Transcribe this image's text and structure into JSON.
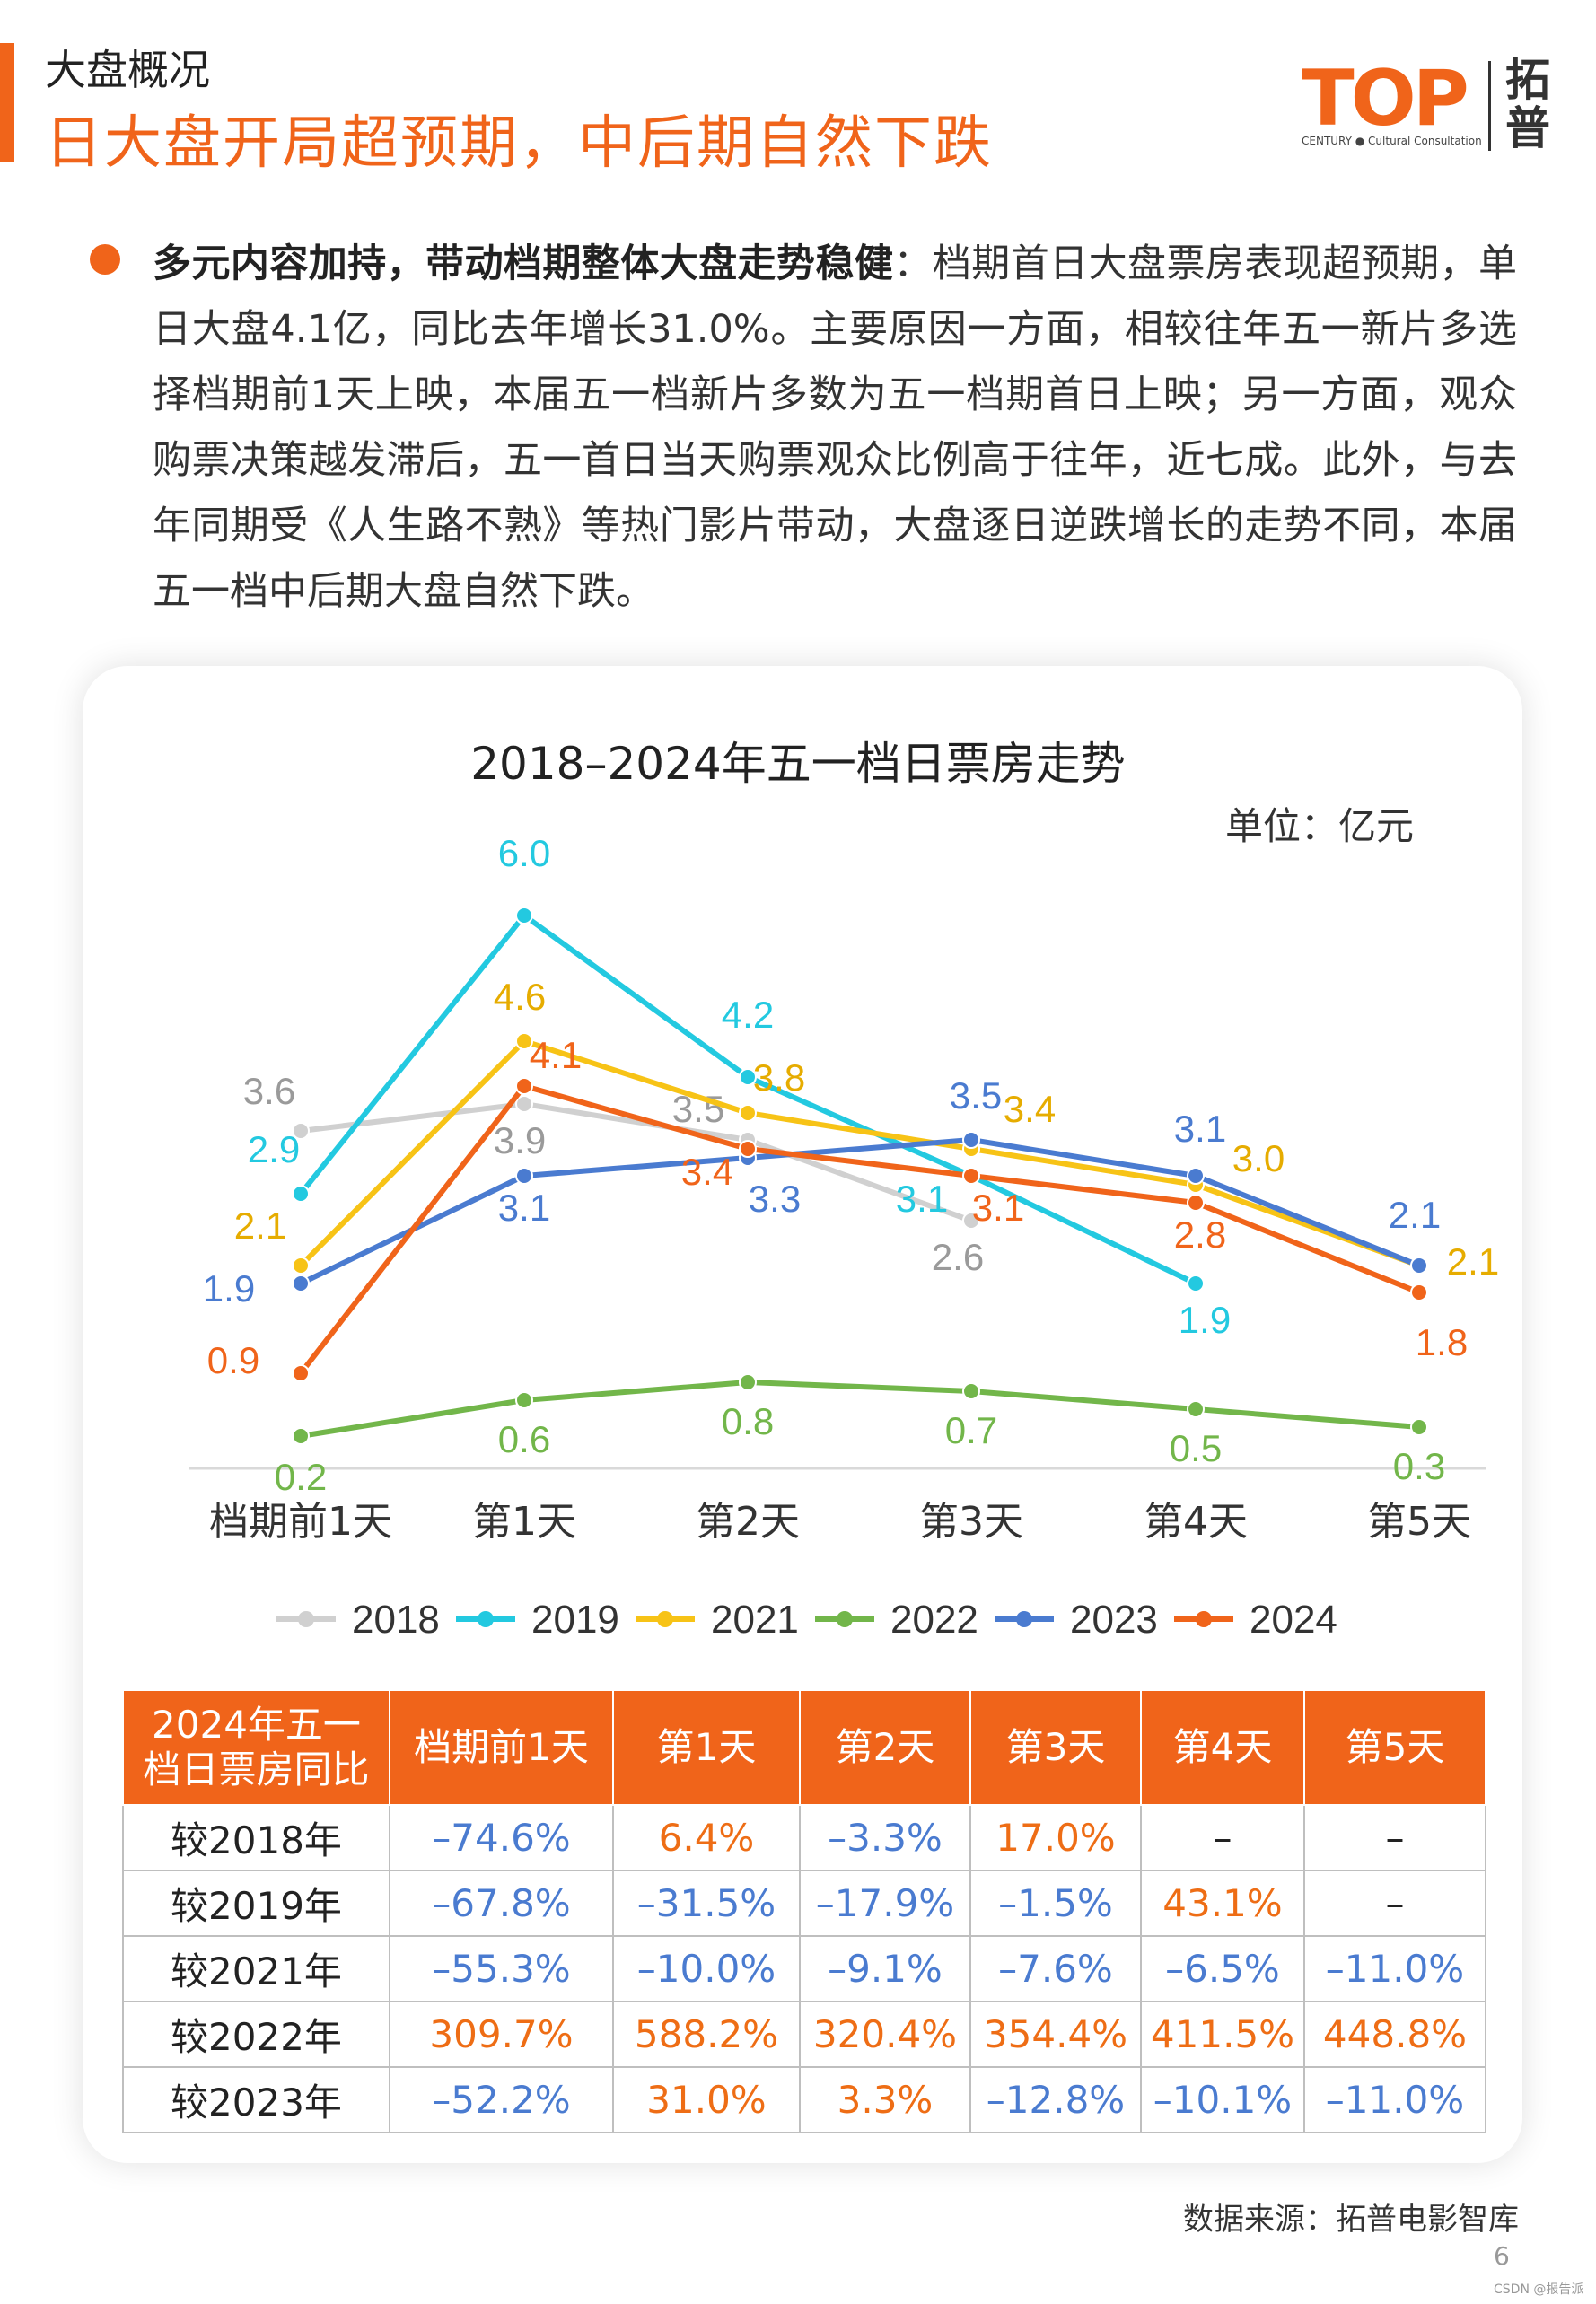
{
  "header": {
    "section": "大盘概况",
    "headline": "日大盘开局超预期，中后期自然下跌",
    "logo_word": "TOP",
    "logo_sub": "CENTURY ● Cultural Consultation",
    "logo_cn": "拓普"
  },
  "summary": {
    "lead": "多元内容加持，带动档期整体大盘走势稳健",
    "body": "：档期首日大盘票房表现超预期，单日大盘4.1亿，同比去年增长31.0%。主要原因一方面，相较往年五一新片多选择档期前1天上映，本届五一档新片多数为五一档期首日上映；另一方面，观众购票决策越发滞后，五一首日当天购票观众比例高于往年，近七成。此外，与去年同期受《人生路不熟》等热门影片带动，大盘逐日逆跌增长的走势不同，本届五一档中后期大盘自然下跌。"
  },
  "chart_data": {
    "type": "line",
    "title": "2018–2024年五一档日票房走势",
    "unit": "单位：亿元",
    "categories": [
      "档期前1天",
      "第1天",
      "第2天",
      "第3天",
      "第4天",
      "第5天"
    ],
    "ylim": [
      0,
      6.5
    ],
    "grid": false,
    "legend_position": "bottom",
    "series": [
      {
        "name": "2018",
        "color": "#d0d0d0",
        "label_color": "#9a9a9a",
        "values": [
          3.6,
          3.9,
          3.5,
          2.6,
          null,
          null
        ]
      },
      {
        "name": "2019",
        "color": "#23c9e0",
        "label_color": "#23c9e0",
        "values": [
          2.9,
          6.0,
          4.2,
          3.1,
          1.9,
          null
        ]
      },
      {
        "name": "2021",
        "color": "#f7c316",
        "label_color": "#e6ac00",
        "values": [
          2.1,
          4.6,
          3.8,
          3.4,
          3.0,
          2.1
        ]
      },
      {
        "name": "2022",
        "color": "#72b64a",
        "label_color": "#72b64a",
        "values": [
          0.2,
          0.6,
          0.8,
          0.7,
          0.5,
          0.3
        ]
      },
      {
        "name": "2023",
        "color": "#4a7bd0",
        "label_color": "#4a7bd0",
        "values": [
          1.9,
          3.1,
          3.3,
          3.5,
          3.1,
          2.1
        ]
      },
      {
        "name": "2024",
        "color": "#f0641a",
        "label_color": "#f0641a",
        "values": [
          0.9,
          4.1,
          3.4,
          3.1,
          2.8,
          1.8
        ]
      }
    ]
  },
  "table": {
    "corner": "2024年五一档日票房同比",
    "columns": [
      "档期前1天",
      "第1天",
      "第2天",
      "第3天",
      "第4天",
      "第5天"
    ],
    "rows": [
      {
        "label": "较2018年",
        "cells": [
          "–74.6%",
          "6.4%",
          "–3.3%",
          "17.0%",
          "–",
          "–"
        ]
      },
      {
        "label": "较2019年",
        "cells": [
          "–67.8%",
          "–31.5%",
          "–17.9%",
          "–1.5%",
          "43.1%",
          "–"
        ]
      },
      {
        "label": "较2021年",
        "cells": [
          "–55.3%",
          "–10.0%",
          "–9.1%",
          "–7.6%",
          "–6.5%",
          "–11.0%"
        ]
      },
      {
        "label": "较2022年",
        "cells": [
          "309.7%",
          "588.2%",
          "320.4%",
          "354.4%",
          "411.5%",
          "448.8%"
        ]
      },
      {
        "label": "较2023年",
        "cells": [
          "–52.2%",
          "31.0%",
          "3.3%",
          "–12.8%",
          "–10.1%",
          "–11.0%"
        ]
      }
    ]
  },
  "footer": {
    "source": "数据来源：拓普电影智库",
    "page": "6",
    "mark": "CSDN @报告派"
  }
}
